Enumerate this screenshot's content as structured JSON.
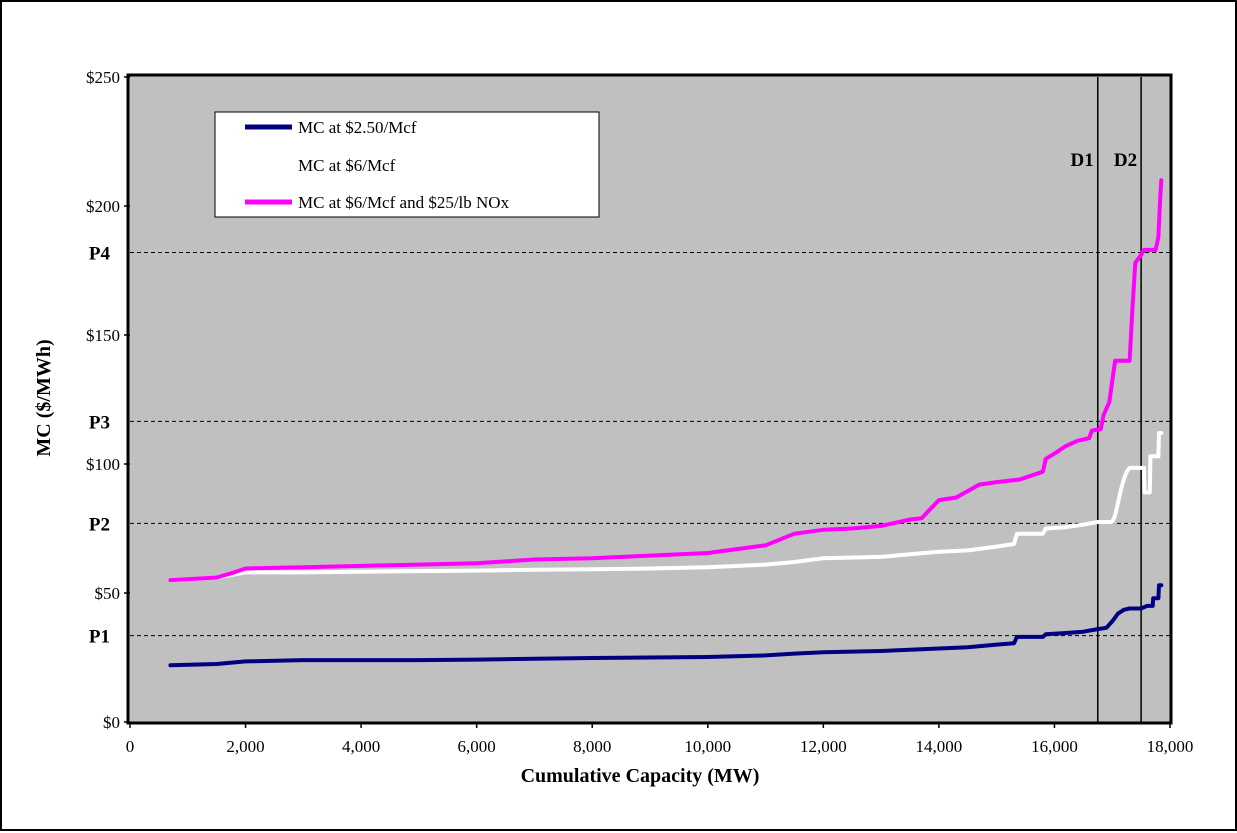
{
  "colors": {
    "plot_background": "#c0c0c0",
    "series_2_50": "#000080",
    "series_6": "#ffffff",
    "series_6_nox": "#ff00ff",
    "reference_lines": "#000000"
  },
  "chart_data": {
    "type": "line",
    "title": "",
    "xlabel": "Cumulative Capacity (MW)",
    "ylabel": "MC ($/MWh)",
    "xlim": [
      0,
      18000
    ],
    "ylim": [
      0,
      250
    ],
    "grid": false,
    "legend_position": "top-left",
    "x_ticks": [
      {
        "value": 0,
        "label": "0"
      },
      {
        "value": 2000,
        "label": "2,000"
      },
      {
        "value": 4000,
        "label": "4,000"
      },
      {
        "value": 6000,
        "label": "6,000"
      },
      {
        "value": 8000,
        "label": "8,000"
      },
      {
        "value": 10000,
        "label": "10,000"
      },
      {
        "value": 12000,
        "label": "12,000"
      },
      {
        "value": 14000,
        "label": "14,000"
      },
      {
        "value": 16000,
        "label": "16,000"
      },
      {
        "value": 18000,
        "label": "18,000"
      }
    ],
    "y_ticks": [
      {
        "value": 0,
        "label": "$0"
      },
      {
        "value": 50,
        "label": "$50"
      },
      {
        "value": 100,
        "label": "$100"
      },
      {
        "value": 150,
        "label": "$150"
      },
      {
        "value": 200,
        "label": "$200"
      },
      {
        "value": 250,
        "label": "$250"
      }
    ],
    "price_lines": [
      {
        "label": "P1",
        "y": 33.5
      },
      {
        "label": "P2",
        "y": 77
      },
      {
        "label": "P3",
        "y": 116.5
      },
      {
        "label": "P4",
        "y": 182
      }
    ],
    "demand_lines": [
      {
        "label": "D1",
        "x": 16750
      },
      {
        "label": "D2",
        "x": 17500
      }
    ],
    "series": [
      {
        "name": "MC at $2.50/Mcf",
        "color": "#000080",
        "points": [
          [
            700,
            22
          ],
          [
            1500,
            22.5
          ],
          [
            2000,
            23.5
          ],
          [
            3000,
            24
          ],
          [
            4000,
            24
          ],
          [
            5000,
            24
          ],
          [
            6000,
            24.2
          ],
          [
            7000,
            24.5
          ],
          [
            8000,
            24.8
          ],
          [
            9000,
            25
          ],
          [
            10000,
            25.2
          ],
          [
            11000,
            25.8
          ],
          [
            11500,
            26.5
          ],
          [
            12000,
            27
          ],
          [
            13000,
            27.5
          ],
          [
            13500,
            28
          ],
          [
            14000,
            28.5
          ],
          [
            14500,
            29
          ],
          [
            15000,
            30
          ],
          [
            15300,
            30.5
          ],
          [
            15350,
            33
          ],
          [
            15800,
            33
          ],
          [
            15850,
            34
          ],
          [
            16200,
            34.5
          ],
          [
            16500,
            35
          ],
          [
            16750,
            36
          ],
          [
            16900,
            36.5
          ],
          [
            17000,
            39
          ],
          [
            17100,
            42
          ],
          [
            17200,
            43.5
          ],
          [
            17300,
            44
          ],
          [
            17500,
            44
          ],
          [
            17600,
            45
          ],
          [
            17700,
            45
          ],
          [
            17710,
            48
          ],
          [
            17800,
            48
          ],
          [
            17810,
            53
          ],
          [
            17850,
            53
          ]
        ]
      },
      {
        "name": "MC at $6/Mcf",
        "color": "#ffffff",
        "points": [
          [
            700,
            55
          ],
          [
            1500,
            56
          ],
          [
            2000,
            58
          ],
          [
            3000,
            58
          ],
          [
            4000,
            58.2
          ],
          [
            5000,
            58.5
          ],
          [
            6000,
            58.7
          ],
          [
            7000,
            59
          ],
          [
            8000,
            59.2
          ],
          [
            9000,
            59.5
          ],
          [
            10000,
            60
          ],
          [
            11000,
            61
          ],
          [
            11500,
            62
          ],
          [
            12000,
            63.5
          ],
          [
            13000,
            64
          ],
          [
            13500,
            65
          ],
          [
            14000,
            66
          ],
          [
            14500,
            66.5
          ],
          [
            15000,
            68
          ],
          [
            15300,
            69
          ],
          [
            15350,
            73
          ],
          [
            15800,
            73
          ],
          [
            15850,
            75
          ],
          [
            16200,
            75.5
          ],
          [
            16500,
            76.5
          ],
          [
            16750,
            77.5
          ],
          [
            16900,
            77.5
          ],
          [
            17000,
            77.5
          ],
          [
            17050,
            80
          ],
          [
            17150,
            90
          ],
          [
            17200,
            94
          ],
          [
            17250,
            97
          ],
          [
            17300,
            98.5
          ],
          [
            17500,
            98.5
          ],
          [
            17550,
            98.5
          ],
          [
            17560,
            89
          ],
          [
            17650,
            89
          ],
          [
            17660,
            103
          ],
          [
            17800,
            103
          ],
          [
            17810,
            112
          ],
          [
            17850,
            112
          ]
        ]
      },
      {
        "name": "MC at $6/Mcf and $25/lb NOx",
        "color": "#ff00ff",
        "points": [
          [
            700,
            55
          ],
          [
            1500,
            56
          ],
          [
            1800,
            58
          ],
          [
            2000,
            59.5
          ],
          [
            3000,
            60
          ],
          [
            4000,
            60.5
          ],
          [
            5000,
            61
          ],
          [
            6000,
            61.5
          ],
          [
            7000,
            63
          ],
          [
            8000,
            63.5
          ],
          [
            9000,
            64.5
          ],
          [
            10000,
            65.5
          ],
          [
            10500,
            67
          ],
          [
            11000,
            68.5
          ],
          [
            11500,
            73
          ],
          [
            12000,
            74.5
          ],
          [
            12500,
            75
          ],
          [
            13000,
            76
          ],
          [
            13500,
            78.5
          ],
          [
            13700,
            79
          ],
          [
            14000,
            86
          ],
          [
            14300,
            87
          ],
          [
            14700,
            92
          ],
          [
            15000,
            93
          ],
          [
            15400,
            94
          ],
          [
            15800,
            97
          ],
          [
            15850,
            102
          ],
          [
            16000,
            104
          ],
          [
            16200,
            107
          ],
          [
            16400,
            109
          ],
          [
            16600,
            110
          ],
          [
            16650,
            113
          ],
          [
            16800,
            113.5
          ],
          [
            16850,
            119
          ],
          [
            16950,
            124
          ],
          [
            17000,
            132
          ],
          [
            17050,
            140
          ],
          [
            17300,
            140
          ],
          [
            17350,
            160
          ],
          [
            17400,
            178
          ],
          [
            17500,
            181
          ],
          [
            17550,
            183
          ],
          [
            17750,
            183
          ],
          [
            17800,
            188
          ],
          [
            17830,
            203
          ],
          [
            17850,
            210
          ]
        ]
      }
    ]
  }
}
